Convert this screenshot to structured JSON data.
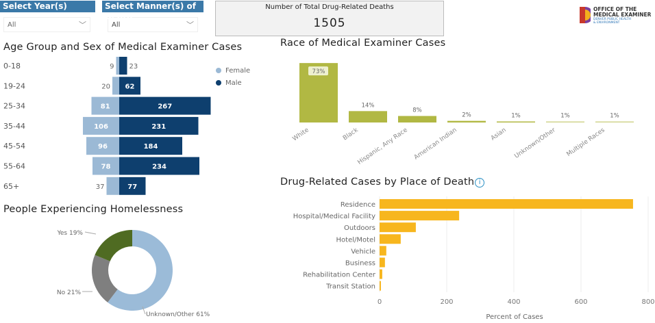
{
  "filters": {
    "year": {
      "label": "Select Year(s)",
      "value": "All"
    },
    "manner": {
      "label": "Select Manner(s) of Death",
      "value": "All"
    }
  },
  "kpi": {
    "label": "Number of Total Drug-Related Deaths",
    "value": "1505"
  },
  "logo": {
    "line1": "OFFICE OF THE",
    "line2": "MEDICAL EXAMINER",
    "line3": "DENVER PUBLIC HEALTH",
    "line4": "& ENVIRONMENT"
  },
  "colors": {
    "female": "#9bb9d5",
    "male": "#0e3f6e",
    "race": "#b1b843",
    "place": "#f7b61e",
    "yes": "#4f6b22",
    "no": "#7f7f7f",
    "unknown": "#9bbbd8"
  },
  "chart_data": [
    {
      "type": "bar",
      "orientation": "horizontal-diverging",
      "title": "Age Group and Sex of Medical Examiner Cases",
      "categories": [
        "0-18",
        "19-24",
        "25-34",
        "35-44",
        "45-54",
        "55-64",
        "65+"
      ],
      "legend": "top-right",
      "series": [
        {
          "name": "Female",
          "values": [
            9,
            20,
            81,
            106,
            96,
            78,
            37
          ]
        },
        {
          "name": "Male",
          "values": [
            23,
            62,
            267,
            231,
            184,
            234,
            77
          ]
        }
      ]
    },
    {
      "type": "bar",
      "title": "Race of Medical Examiner Cases",
      "categories": [
        "White",
        "Black",
        "Hispanic, Any Race",
        "American Indian",
        "Asian",
        "Unknown/Other",
        "Multiple Races"
      ],
      "values": [
        73,
        14,
        8,
        2,
        1,
        1,
        1
      ],
      "labels": [
        "73%",
        "14%",
        "8%",
        "2%",
        "1%",
        "1%",
        "1%"
      ]
    },
    {
      "type": "pie",
      "donut": true,
      "title": "People Experiencing Homelessness",
      "categories": [
        "Unknown/Other",
        "No",
        "Yes"
      ],
      "values": [
        61,
        21,
        19
      ],
      "labels": [
        "Unknown/Other 61%",
        "No 21%",
        "Yes 19%"
      ]
    },
    {
      "type": "bar",
      "orientation": "horizontal",
      "title": "Drug-Related Cases by Place of Death",
      "categories": [
        "Residence",
        "Hospital/Medical Facility",
        "Outdoors",
        "Hotel/Motel",
        "Vehicle",
        "Business",
        "Rehabilitation Center",
        "Transit Station"
      ],
      "values": [
        755,
        237,
        108,
        63,
        20,
        16,
        8,
        4
      ],
      "xlabel": "Percent of Cases",
      "xlim": [
        0,
        800
      ],
      "xticks": [
        "0",
        "200",
        "400",
        "600",
        "800"
      ],
      "grid": true
    }
  ]
}
